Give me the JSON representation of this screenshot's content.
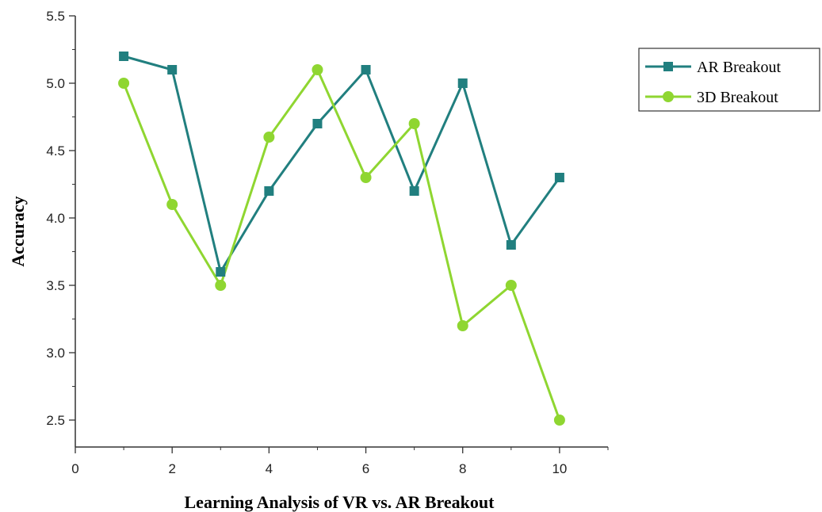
{
  "chart_data": {
    "type": "line",
    "title": "",
    "xlabel": "Learning Analysis of VR vs. AR Breakout",
    "ylabel": "Accuracy",
    "xlim": [
      0,
      11
    ],
    "ylim": [
      2.3,
      5.5
    ],
    "xticks": [
      0,
      2,
      4,
      6,
      8,
      10
    ],
    "yticks": [
      2.5,
      3.0,
      3.5,
      4.0,
      4.5,
      5.0,
      5.5
    ],
    "ytick_labels": [
      "2.5",
      "3.0",
      "3.5",
      "4.0",
      "4.5",
      "5.0",
      "5.5"
    ],
    "grid": false,
    "legend_position": "top-right (outside plot)",
    "x": [
      1,
      2,
      3,
      4,
      5,
      6,
      7,
      8,
      9,
      10
    ],
    "series": [
      {
        "name": "AR Breakout",
        "color": "#217f7f",
        "marker": "square",
        "values": [
          5.2,
          5.1,
          3.6,
          4.2,
          4.7,
          5.1,
          4.2,
          5.0,
          3.8,
          4.3
        ]
      },
      {
        "name": "3D Breakout",
        "color": "#8fd631",
        "marker": "circle",
        "values": [
          5.0,
          4.1,
          3.5,
          4.6,
          5.1,
          4.3,
          4.7,
          3.2,
          3.5,
          2.5
        ]
      }
    ]
  }
}
